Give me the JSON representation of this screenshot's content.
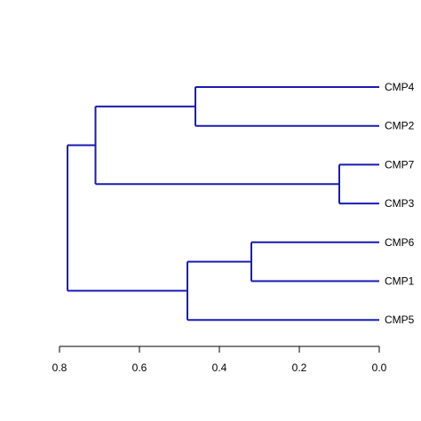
{
  "chart_data": {
    "type": "dendrogram",
    "orientation": "horizontal",
    "axis": {
      "xlim": [
        0.8,
        0.0
      ],
      "ticks": [
        "0.8",
        "0.6",
        "0.4",
        "0.2",
        "0.0"
      ],
      "tick_values": [
        0.8,
        0.6,
        0.4,
        0.2,
        0.0
      ]
    },
    "leaves": [
      "CMP4",
      "CMP2",
      "CMP7",
      "CMP3",
      "CMP6",
      "CMP1",
      "CMP5"
    ],
    "merges": [
      {
        "id": "m1",
        "height": 0.46,
        "children": [
          "CMP4",
          "CMP2"
        ]
      },
      {
        "id": "m2",
        "height": 0.1,
        "children": [
          "CMP7",
          "CMP3"
        ]
      },
      {
        "id": "m3",
        "height": 0.32,
        "children": [
          "CMP6",
          "CMP1"
        ]
      },
      {
        "id": "m4",
        "height": 0.71,
        "children": [
          "m1",
          "m2"
        ]
      },
      {
        "id": "m5",
        "height": 0.48,
        "children": [
          "m3",
          "CMP5"
        ]
      },
      {
        "id": "m6",
        "height": 0.78,
        "children": [
          "m4",
          "m5"
        ]
      }
    ],
    "line_color": "#1a1ab4",
    "grid": false
  }
}
